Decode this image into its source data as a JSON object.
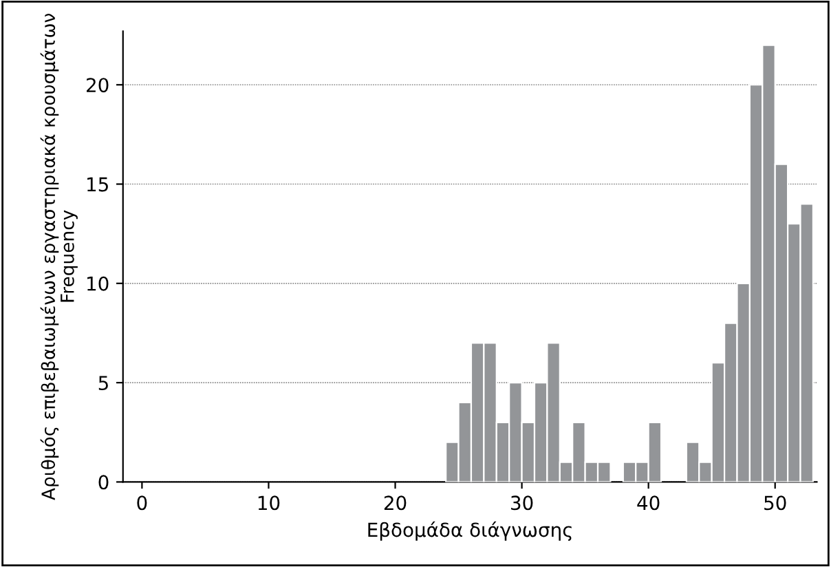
{
  "chart_data": {
    "type": "histogram",
    "xlabel": "Εβδομάδα διάγνωσης",
    "ylabel": "Αριθμός επιβεβαιωμένων εργαστηριακά κρουσμάτων\nFrequency",
    "bins": [
      24,
      25,
      26,
      27,
      28,
      29,
      30,
      31,
      32,
      33,
      34,
      35,
      36,
      37,
      38,
      39,
      40,
      41,
      42,
      43,
      44,
      45,
      46,
      47,
      48,
      49,
      50,
      51,
      52,
      53
    ],
    "values": [
      2,
      4,
      7,
      7,
      3,
      5,
      3,
      5,
      7,
      1,
      3,
      1,
      1,
      0,
      1,
      1,
      3,
      0,
      0,
      2,
      1,
      6,
      8,
      10,
      20,
      22,
      16,
      13,
      14
    ],
    "color": "#939598",
    "xlim": [
      -1.5,
      53.3
    ],
    "ylim": [
      0,
      22.7
    ],
    "xticks": [
      0,
      10,
      20,
      30,
      40,
      50
    ],
    "yticks": [
      0,
      5,
      10,
      15,
      20
    ],
    "grid": "y"
  }
}
